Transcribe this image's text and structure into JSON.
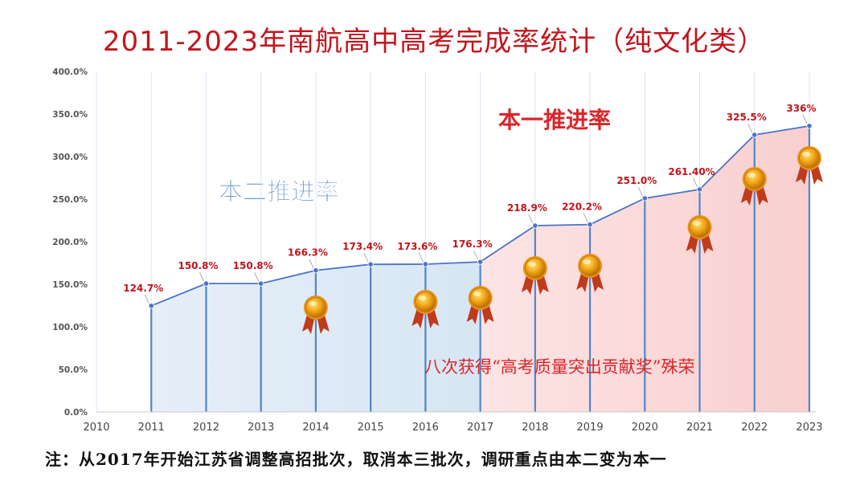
{
  "title": "2011-2023年南航高中高考完成率统计（纯文化类）",
  "footnote": "注：从2017年开始江苏省调整高招批次，取消本三批次，调研重点由本二变为本一",
  "colors": {
    "line": "#4a74c9",
    "region_benji2": "#dde9f5",
    "region_benji1": "#fbdcdc",
    "label": "#c0141b",
    "annotation_blue": "#3d77b8",
    "annotation_red": "#d9262b",
    "gridline": "#4f86c6",
    "medal": "#f0a413",
    "ribbon": "#c03a1c"
  },
  "chart_data": {
    "type": "area",
    "title": "2011-2023年南航高中高考完成率统计（纯文化类）",
    "xlabel": "",
    "ylabel": "",
    "x_tick_labels": [
      "2010",
      "2011",
      "2012",
      "2013",
      "2014",
      "2015",
      "2016",
      "2017",
      "2018",
      "2019",
      "2020",
      "2021",
      "2022",
      "2023"
    ],
    "y_tick_labels": [
      "0.0%",
      "50.0%",
      "100.0%",
      "150.0%",
      "200.0%",
      "250.0%",
      "300.0%",
      "350.0%",
      "400.0%"
    ],
    "ylim": [
      0,
      400
    ],
    "xlim": [
      2010,
      2023
    ],
    "grid": "vertical",
    "series": [
      {
        "x": [
          2011,
          2012,
          2013,
          2014,
          2015,
          2016,
          2017,
          2018,
          2019,
          2020,
          2021,
          2022,
          2023
        ],
        "values": [
          124.7,
          150.8,
          150.8,
          166.3,
          173.4,
          173.6,
          176.3,
          218.9,
          220.2,
          251.0,
          261.4,
          325.5,
          336
        ],
        "labels": [
          "124.7%",
          "150.8%",
          "150.8%",
          "166.3%",
          "173.4%",
          "173.6%",
          "176.3%",
          "218.9%",
          "220.2%",
          "251.0%",
          "261.40%",
          "325.5%",
          "336%"
        ]
      }
    ],
    "annotations": [
      {
        "text": "本二推进率",
        "region": "2011-2017"
      },
      {
        "text": "本一推进率",
        "region": "2017-2023"
      },
      {
        "text": "八次获得“高考质量突出贡献奖”殊荣"
      }
    ],
    "award_years": [
      2014,
      2016,
      2017,
      2018,
      2019,
      2021,
      2022,
      2023
    ]
  }
}
